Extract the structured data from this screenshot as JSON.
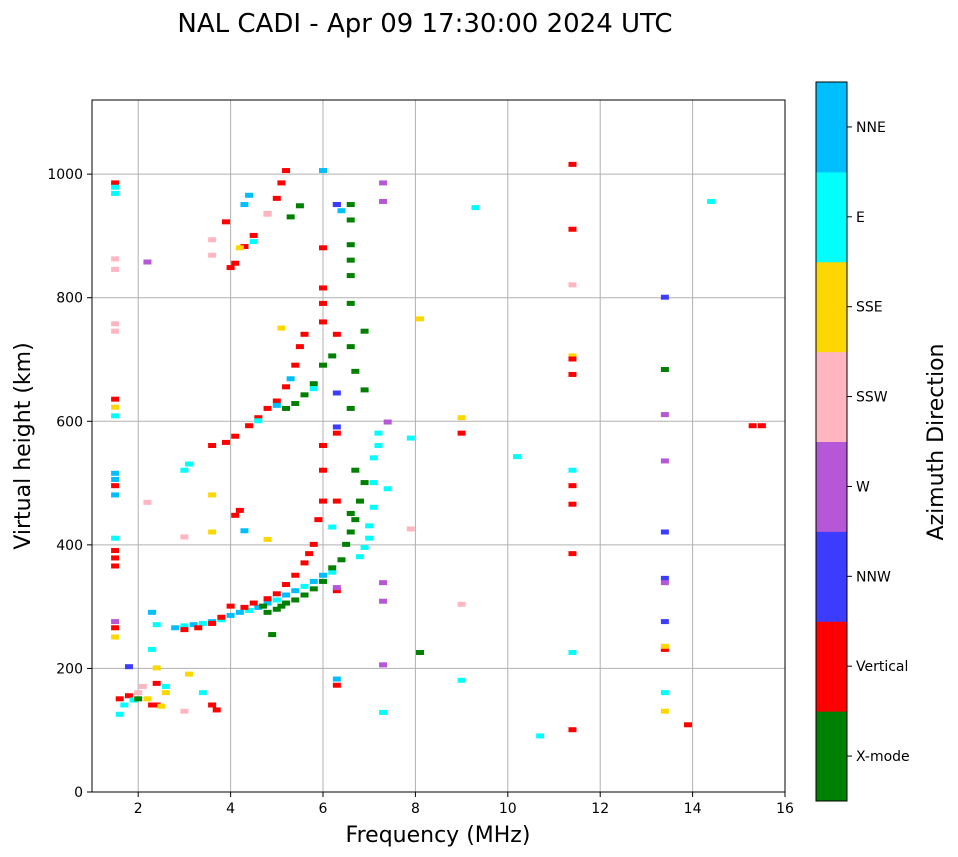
{
  "chart_data": {
    "type": "scatter",
    "title": "NAL CADI - Apr 09 17:30:00 2024 UTC",
    "xlabel": "Frequency (MHz)",
    "ylabel": "Virtual height (km)",
    "xlim": [
      1,
      16
    ],
    "ylim": [
      0,
      1120
    ],
    "xticks": [
      2,
      4,
      6,
      8,
      10,
      12,
      14,
      16
    ],
    "yticks": [
      0,
      200,
      400,
      600,
      800,
      1000
    ],
    "grid": true,
    "colorbar": {
      "label": "Azimuth Direction",
      "placement": "right",
      "categories": [
        {
          "name": "X-mode",
          "color": "#008000"
        },
        {
          "name": "Vertical",
          "color": "#ff0000"
        },
        {
          "name": "NNW",
          "color": "#3c3cff"
        },
        {
          "name": "W",
          "color": "#b557d6"
        },
        {
          "name": "SSW",
          "color": "#ffb6c1"
        },
        {
          "name": "SSE",
          "color": "#ffd700"
        },
        {
          "name": "E",
          "color": "#00ffff"
        },
        {
          "name": "NNE",
          "color": "#00bfff"
        }
      ]
    },
    "points_format": [
      "frequency_mhz",
      "height_km",
      "category_index"
    ],
    "points": [
      [
        2.8,
        265,
        7
      ],
      [
        3.0,
        268,
        6
      ],
      [
        3.2,
        270,
        7
      ],
      [
        3.4,
        272,
        6
      ],
      [
        3.6,
        275,
        7
      ],
      [
        3.8,
        278,
        6
      ],
      [
        4.0,
        285,
        7
      ],
      [
        4.2,
        290,
        7
      ],
      [
        4.4,
        293,
        6
      ],
      [
        4.6,
        298,
        7
      ],
      [
        4.8,
        305,
        7
      ],
      [
        5.0,
        310,
        6
      ],
      [
        5.2,
        318,
        7
      ],
      [
        5.4,
        325,
        7
      ],
      [
        5.6,
        332,
        6
      ],
      [
        5.8,
        340,
        7
      ],
      [
        6.0,
        350,
        7
      ],
      [
        6.2,
        355,
        6
      ],
      [
        3.0,
        262,
        1
      ],
      [
        3.3,
        265,
        1
      ],
      [
        3.6,
        272,
        1
      ],
      [
        3.8,
        282,
        1
      ],
      [
        4.0,
        300,
        1
      ],
      [
        4.3,
        298,
        1
      ],
      [
        4.5,
        305,
        1
      ],
      [
        4.8,
        312,
        1
      ],
      [
        5.0,
        320,
        1
      ],
      [
        5.2,
        335,
        1
      ],
      [
        5.4,
        350,
        1
      ],
      [
        5.6,
        370,
        1
      ],
      [
        5.7,
        385,
        1
      ],
      [
        5.8,
        400,
        1
      ],
      [
        5.9,
        440,
        1
      ],
      [
        6.0,
        470,
        1
      ],
      [
        6.0,
        520,
        1
      ],
      [
        6.0,
        560,
        1
      ],
      [
        4.8,
        290,
        0
      ],
      [
        5.0,
        295,
        0
      ],
      [
        5.2,
        305,
        0
      ],
      [
        5.4,
        310,
        0
      ],
      [
        5.6,
        318,
        0
      ],
      [
        5.8,
        328,
        0
      ],
      [
        6.0,
        340,
        0
      ],
      [
        6.2,
        362,
        0
      ],
      [
        6.4,
        375,
        0
      ],
      [
        6.5,
        400,
        0
      ],
      [
        6.6,
        420,
        0
      ],
      [
        6.7,
        440,
        0
      ],
      [
        6.8,
        470,
        0
      ],
      [
        6.9,
        500,
        0
      ],
      [
        6.6,
        450,
        0
      ],
      [
        6.7,
        520,
        0
      ],
      [
        4.7,
        300,
        0
      ],
      [
        5.1,
        300,
        0
      ],
      [
        6.8,
        380,
        6
      ],
      [
        6.9,
        395,
        6
      ],
      [
        7.0,
        410,
        6
      ],
      [
        7.0,
        430,
        6
      ],
      [
        7.1,
        460,
        6
      ],
      [
        7.1,
        500,
        6
      ],
      [
        7.1,
        540,
        6
      ],
      [
        7.2,
        580,
        6
      ],
      [
        7.4,
        490,
        6
      ],
      [
        7.2,
        560,
        6
      ],
      [
        3.6,
        560,
        1
      ],
      [
        3.9,
        565,
        1
      ],
      [
        4.1,
        575,
        1
      ],
      [
        4.4,
        592,
        1
      ],
      [
        4.6,
        605,
        1
      ],
      [
        4.8,
        620,
        1
      ],
      [
        5.0,
        632,
        1
      ],
      [
        5.2,
        655,
        1
      ],
      [
        5.4,
        690,
        1
      ],
      [
        5.5,
        720,
        1
      ],
      [
        5.6,
        740,
        1
      ],
      [
        6.0,
        760,
        1
      ],
      [
        6.0,
        790,
        1
      ],
      [
        6.0,
        815,
        1
      ],
      [
        5.2,
        620,
        0
      ],
      [
        5.4,
        628,
        0
      ],
      [
        5.6,
        642,
        0
      ],
      [
        5.8,
        660,
        0
      ],
      [
        6.0,
        690,
        0
      ],
      [
        6.2,
        705,
        0
      ],
      [
        6.6,
        720,
        0
      ],
      [
        6.9,
        745,
        0
      ],
      [
        6.7,
        680,
        0
      ],
      [
        6.9,
        650,
        0
      ],
      [
        6.6,
        620,
        0
      ],
      [
        6.6,
        790,
        0
      ],
      [
        4.6,
        600,
        6
      ],
      [
        5.0,
        625,
        7
      ],
      [
        5.3,
        668,
        7
      ],
      [
        5.8,
        652,
        6
      ],
      [
        3.1,
        530,
        6
      ],
      [
        3.0,
        520,
        6
      ],
      [
        4.0,
        848,
        1
      ],
      [
        4.1,
        855,
        1
      ],
      [
        4.3,
        882,
        1
      ],
      [
        4.5,
        900,
        1
      ],
      [
        4.8,
        935,
        1
      ],
      [
        5.0,
        960,
        1
      ],
      [
        5.1,
        985,
        1
      ],
      [
        5.2,
        1005,
        1
      ],
      [
        3.9,
        922,
        1
      ],
      [
        6.0,
        880,
        1
      ],
      [
        6.6,
        950,
        0
      ],
      [
        6.6,
        925,
        0
      ],
      [
        6.6,
        885,
        0
      ],
      [
        6.6,
        860,
        0
      ],
      [
        6.6,
        835,
        0
      ],
      [
        5.5,
        948,
        0
      ],
      [
        5.3,
        930,
        0
      ],
      [
        6.4,
        940,
        7
      ],
      [
        4.3,
        950,
        7
      ],
      [
        4.4,
        965,
        7
      ],
      [
        4.5,
        890,
        6
      ],
      [
        4.2,
        880,
        5
      ],
      [
        4.8,
        935,
        4
      ],
      [
        6.0,
        1005,
        7
      ],
      [
        6.3,
        950,
        2
      ],
      [
        1.5,
        985,
        1
      ],
      [
        1.5,
        978,
        6
      ],
      [
        1.5,
        968,
        6
      ],
      [
        1.5,
        862,
        4
      ],
      [
        1.5,
        845,
        4
      ],
      [
        1.5,
        757,
        4
      ],
      [
        1.5,
        745,
        4
      ],
      [
        1.5,
        635,
        1
      ],
      [
        1.5,
        622,
        5
      ],
      [
        1.5,
        608,
        6
      ],
      [
        1.5,
        515,
        7
      ],
      [
        1.5,
        505,
        7
      ],
      [
        1.5,
        495,
        1
      ],
      [
        1.5,
        480,
        7
      ],
      [
        1.5,
        410,
        6
      ],
      [
        1.5,
        390,
        1
      ],
      [
        1.5,
        378,
        1
      ],
      [
        1.5,
        365,
        1
      ],
      [
        1.5,
        275,
        3
      ],
      [
        1.5,
        265,
        1
      ],
      [
        1.5,
        250,
        5
      ],
      [
        2.2,
        857,
        3
      ],
      [
        2.2,
        468,
        4
      ],
      [
        3.6,
        893,
        4
      ],
      [
        3.6,
        868,
        4
      ],
      [
        1.6,
        150,
        1
      ],
      [
        1.7,
        140,
        6
      ],
      [
        1.8,
        155,
        1
      ],
      [
        1.9,
        148,
        6
      ],
      [
        2.0,
        160,
        4
      ],
      [
        2.1,
        170,
        4
      ],
      [
        2.2,
        150,
        5
      ],
      [
        2.3,
        140,
        1
      ],
      [
        2.4,
        140,
        1
      ],
      [
        2.4,
        200,
        5
      ],
      [
        2.4,
        175,
        1
      ],
      [
        2.5,
        138,
        5
      ],
      [
        2.6,
        170,
        6
      ],
      [
        2.6,
        160,
        5
      ],
      [
        3.6,
        140,
        1
      ],
      [
        3.7,
        132,
        1
      ],
      [
        3.4,
        160,
        6
      ],
      [
        3.1,
        190,
        5
      ],
      [
        3.0,
        130,
        4
      ],
      [
        1.6,
        125,
        6
      ],
      [
        2.3,
        290,
        7
      ],
      [
        2.4,
        270,
        6
      ],
      [
        2.3,
        230,
        6
      ],
      [
        2.0,
        150,
        0
      ],
      [
        6.3,
        182,
        7
      ],
      [
        6.3,
        172,
        1
      ],
      [
        6.3,
        325,
        1
      ],
      [
        6.3,
        330,
        3
      ],
      [
        6.3,
        740,
        1
      ],
      [
        6.3,
        580,
        1
      ],
      [
        6.3,
        590,
        2
      ],
      [
        6.3,
        645,
        2
      ],
      [
        6.3,
        470,
        1
      ],
      [
        6.3,
        950,
        2
      ],
      [
        11.4,
        1015,
        1
      ],
      [
        11.4,
        910,
        1
      ],
      [
        11.4,
        705,
        5
      ],
      [
        11.4,
        700,
        1
      ],
      [
        11.4,
        675,
        1
      ],
      [
        11.4,
        495,
        1
      ],
      [
        11.4,
        465,
        1
      ],
      [
        11.4,
        385,
        1
      ],
      [
        11.4,
        100,
        1
      ],
      [
        11.4,
        520,
        6
      ],
      [
        11.4,
        225,
        6
      ],
      [
        11.4,
        820,
        4
      ],
      [
        13.4,
        800,
        2
      ],
      [
        13.4,
        420,
        2
      ],
      [
        13.4,
        345,
        2
      ],
      [
        13.4,
        275,
        2
      ],
      [
        13.4,
        610,
        3
      ],
      [
        13.4,
        535,
        3
      ],
      [
        13.4,
        338,
        3
      ],
      [
        13.4,
        230,
        1
      ],
      [
        13.4,
        235,
        5
      ],
      [
        13.4,
        130,
        5
      ],
      [
        13.4,
        160,
        6
      ],
      [
        13.4,
        683,
        0
      ],
      [
        15.5,
        592,
        1
      ],
      [
        15.3,
        592,
        1
      ],
      [
        13.9,
        108,
        1
      ],
      [
        14.4,
        955,
        6
      ],
      [
        10.7,
        90,
        6
      ],
      [
        10.2,
        542,
        6
      ],
      [
        9.3,
        945,
        6
      ],
      [
        9.0,
        180,
        6
      ],
      [
        8.1,
        765,
        5
      ],
      [
        9.0,
        605,
        5
      ],
      [
        9.0,
        580,
        1
      ],
      [
        9.0,
        303,
        4
      ],
      [
        7.9,
        425,
        4
      ],
      [
        8.1,
        225,
        0
      ],
      [
        7.3,
        128,
        6
      ],
      [
        7.3,
        985,
        3
      ],
      [
        7.3,
        955,
        3
      ],
      [
        7.4,
        598,
        3
      ],
      [
        7.3,
        338,
        3
      ],
      [
        7.3,
        308,
        3
      ],
      [
        7.3,
        205,
        3
      ],
      [
        7.9,
        572,
        6
      ],
      [
        6.2,
        428,
        6
      ],
      [
        3.6,
        480,
        5
      ],
      [
        3.6,
        420,
        5
      ],
      [
        4.8,
        408,
        5
      ],
      [
        4.1,
        447,
        1
      ],
      [
        4.2,
        455,
        1
      ],
      [
        4.3,
        422,
        7
      ],
      [
        5.1,
        750,
        5
      ],
      [
        4.9,
        254,
        0
      ],
      [
        3.0,
        412,
        4
      ],
      [
        1.8,
        202,
        2
      ]
    ]
  }
}
